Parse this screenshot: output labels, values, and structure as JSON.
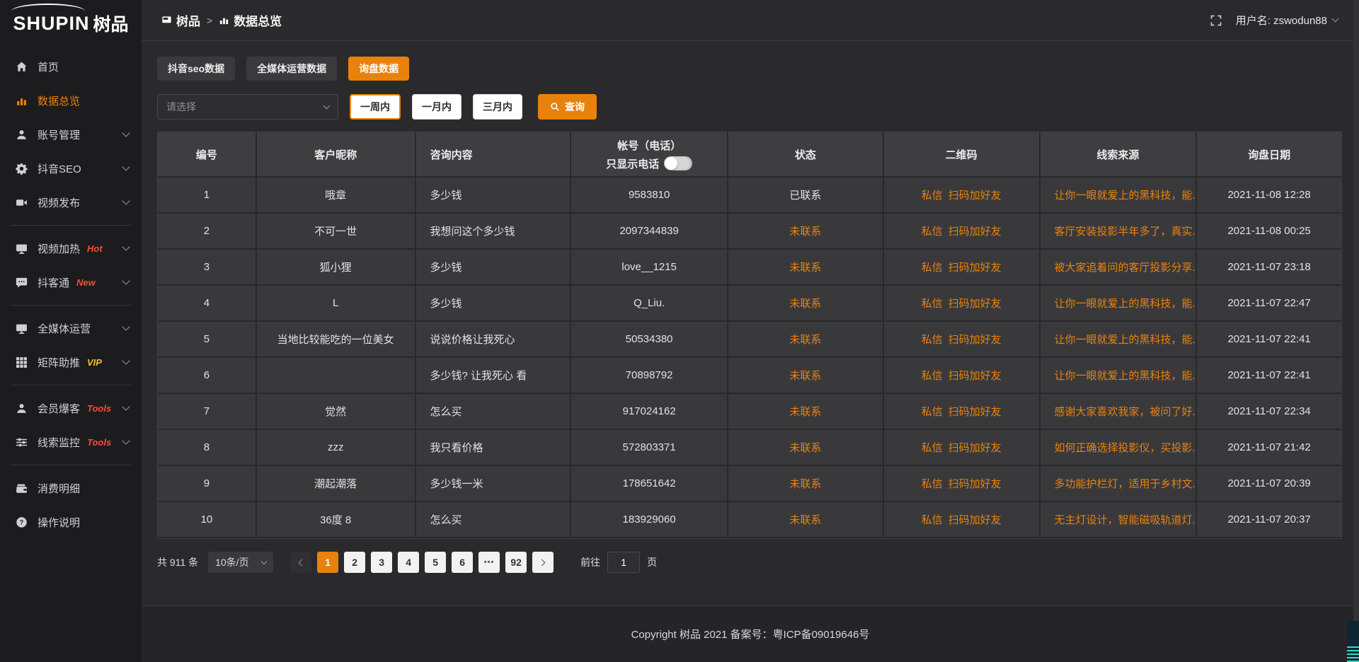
{
  "app": {
    "title_en": "SHUPIN",
    "title_cn": "树品"
  },
  "colors": {
    "accent": "#e8820d",
    "badge_red": "#f74b3c",
    "badge_yellow": "#f6c12e",
    "status_pending": "#e8820d"
  },
  "header": {
    "breadcrumb_app": "树品",
    "breadcrumb_sep": ">",
    "breadcrumb_page": "数据总览",
    "username": "用户名: zswodun88"
  },
  "sidebar": {
    "items": [
      {
        "icon": "home-icon",
        "label": "首页",
        "active": false,
        "chevron": false,
        "badge": "",
        "badge_color": "",
        "divider_after": false
      },
      {
        "icon": "bar-chart-icon",
        "label": "数据总览",
        "active": true,
        "chevron": false,
        "badge": "",
        "badge_color": "",
        "divider_after": false
      },
      {
        "icon": "user-icon",
        "label": "账号管理",
        "active": false,
        "chevron": true,
        "badge": "",
        "badge_color": "",
        "divider_after": false
      },
      {
        "icon": "gear-icon",
        "label": "抖音SEO",
        "active": false,
        "chevron": true,
        "badge": "",
        "badge_color": "",
        "divider_after": false
      },
      {
        "icon": "video-icon",
        "label": "视频发布",
        "active": false,
        "chevron": true,
        "badge": "",
        "badge_color": "",
        "divider_after": true
      },
      {
        "icon": "monitor-icon",
        "label": "视频加热",
        "active": false,
        "chevron": true,
        "badge": "Hot",
        "badge_color": "red",
        "divider_after": false
      },
      {
        "icon": "chat-icon",
        "label": "抖客通",
        "active": false,
        "chevron": true,
        "badge": "New",
        "badge_color": "red",
        "divider_after": true
      },
      {
        "icon": "monitor-icon",
        "label": "全媒体运营",
        "active": false,
        "chevron": true,
        "badge": "",
        "badge_color": "",
        "divider_after": false
      },
      {
        "icon": "grid-icon",
        "label": "矩阵助推",
        "active": false,
        "chevron": true,
        "badge": "VIP",
        "badge_color": "yellow",
        "divider_after": true
      },
      {
        "icon": "user-icon",
        "label": "会员爆客",
        "active": false,
        "chevron": true,
        "badge": "Tools",
        "badge_color": "red",
        "divider_after": false
      },
      {
        "icon": "sliders-icon",
        "label": "线索监控",
        "active": false,
        "chevron": true,
        "badge": "Tools",
        "badge_color": "red",
        "divider_after": true
      },
      {
        "icon": "wallet-icon",
        "label": "消费明细",
        "active": false,
        "chevron": false,
        "badge": "",
        "badge_color": "",
        "divider_after": false
      },
      {
        "icon": "question-icon",
        "label": "操作说明",
        "active": false,
        "chevron": false,
        "badge": "",
        "badge_color": "",
        "divider_after": false
      }
    ]
  },
  "tabs": [
    {
      "label": "抖音seo数据",
      "active": false
    },
    {
      "label": "全媒体运营数据",
      "active": false
    },
    {
      "label": "询盘数据",
      "active": true
    }
  ],
  "filters": {
    "select_placeholder": "请选择",
    "periods": [
      {
        "label": "一周内",
        "active": true
      },
      {
        "label": "一月内",
        "active": false
      },
      {
        "label": "三月内",
        "active": false
      }
    ],
    "search_label": "查询"
  },
  "table": {
    "columns": [
      "编号",
      "客户昵称",
      "咨询内容",
      "帐号（电话）",
      "状态",
      "二维码",
      "线索来源",
      "询盘日期"
    ],
    "phone_toggle_label": "只显示电话",
    "rows": [
      {
        "no": "1",
        "nickname": "哦章",
        "content": "多少钱",
        "account": "9583810",
        "status": "已联系",
        "qr1": "私信",
        "qr2": "扫码加好友",
        "source": "让你一眼就爱上的黑科技，能...",
        "date": "2021-11-08 12:28"
      },
      {
        "no": "2",
        "nickname": "不可一世",
        "content": "我想问这个多少钱",
        "account": "2097344839",
        "status": "未联系",
        "qr1": "私信",
        "qr2": "扫码加好友",
        "source": "客厅安装投影半年多了，真实...",
        "date": "2021-11-08 00:25"
      },
      {
        "no": "3",
        "nickname": "狐小狸",
        "content": "多少钱",
        "account": "love__1215",
        "status": "未联系",
        "qr1": "私信",
        "qr2": "扫码加好友",
        "source": "被大家追着问的客厅投影分享...",
        "date": "2021-11-07 23:18"
      },
      {
        "no": "4",
        "nickname": "L",
        "content": "多少钱",
        "account": "Q_Liu.",
        "status": "未联系",
        "qr1": "私信",
        "qr2": "扫码加好友",
        "source": "让你一眼就爱上的黑科技，能...",
        "date": "2021-11-07 22:47"
      },
      {
        "no": "5",
        "nickname": "当地比较能吃的一位美女",
        "content": "说说价格让我死心",
        "account": "50534380",
        "status": "未联系",
        "qr1": "私信",
        "qr2": "扫码加好友",
        "source": "让你一眼就爱上的黑科技，能...",
        "date": "2021-11-07 22:41"
      },
      {
        "no": "6",
        "nickname": "",
        "content": "多少钱? 让我死心 看",
        "account": "70898792",
        "status": "未联系",
        "qr1": "私信",
        "qr2": "扫码加好友",
        "source": "让你一眼就爱上的黑科技，能...",
        "date": "2021-11-07 22:41"
      },
      {
        "no": "7",
        "nickname": "觉然",
        "content": "怎么买",
        "account": "917024162",
        "status": "未联系",
        "qr1": "私信",
        "qr2": "扫码加好友",
        "source": "感谢大家喜欢我家，被问了好...",
        "date": "2021-11-07 22:34"
      },
      {
        "no": "8",
        "nickname": "zzz",
        "content": "我只看价格",
        "account": "572803371",
        "status": "未联系",
        "qr1": "私信",
        "qr2": "扫码加好友",
        "source": "如何正确选择投影仪，买投影...",
        "date": "2021-11-07 21:42"
      },
      {
        "no": "9",
        "nickname": "潮起潮落",
        "content": "多少钱一米",
        "account": "178651642",
        "status": "未联系",
        "qr1": "私信",
        "qr2": "扫码加好友",
        "source": "多功能护栏灯，适用于乡村文...",
        "date": "2021-11-07 20:39"
      },
      {
        "no": "10",
        "nickname": "36度 8",
        "content": "怎么买",
        "account": "183929060",
        "status": "未联系",
        "qr1": "私信",
        "qr2": "扫码加好友",
        "source": "无主灯设计，智能磁吸轨道灯...",
        "date": "2021-11-07 20:37"
      }
    ]
  },
  "pagination": {
    "total": "共 911 条",
    "page_size": "10条/页",
    "pages": [
      "1",
      "2",
      "3",
      "4",
      "5",
      "6",
      "•••",
      "92"
    ],
    "active_page": "1",
    "goto_label": "前往",
    "goto_value": "1",
    "goto_suffix": "页"
  },
  "footer": {
    "copyright": "Copyright 树品 2021 备案号：粤ICP备09019646号"
  }
}
